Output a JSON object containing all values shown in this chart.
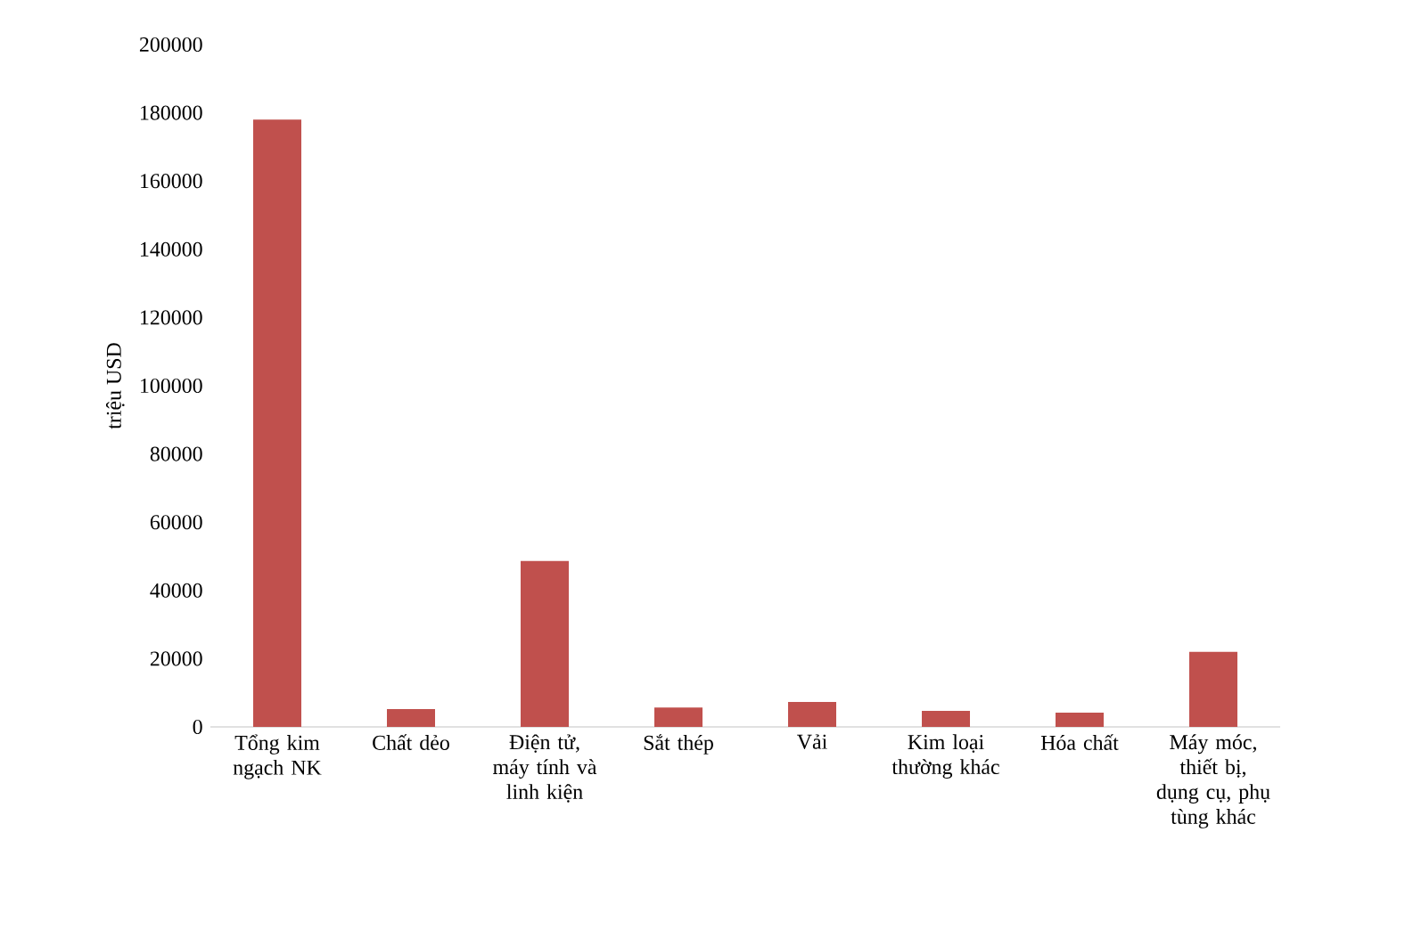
{
  "chart_data": {
    "type": "bar",
    "ylabel": "triệu USD",
    "categories": [
      "Tổng kim ngạch NK",
      "Chất dẻo",
      "Điện tử, máy tính và linh kiện",
      "Sắt thép",
      "Vải",
      "Kim loại thường khác",
      "Hóa chất",
      "Máy móc, thiết bị, dụng cụ, phụ tùng khác"
    ],
    "values": [
      178000,
      5200,
      48600,
      5700,
      7300,
      4700,
      4200,
      22000
    ],
    "color": "#c0504d",
    "ylim": [
      0,
      200000
    ],
    "yticks": [
      0,
      20000,
      40000,
      60000,
      80000,
      100000,
      120000,
      140000,
      160000,
      180000,
      200000
    ]
  }
}
